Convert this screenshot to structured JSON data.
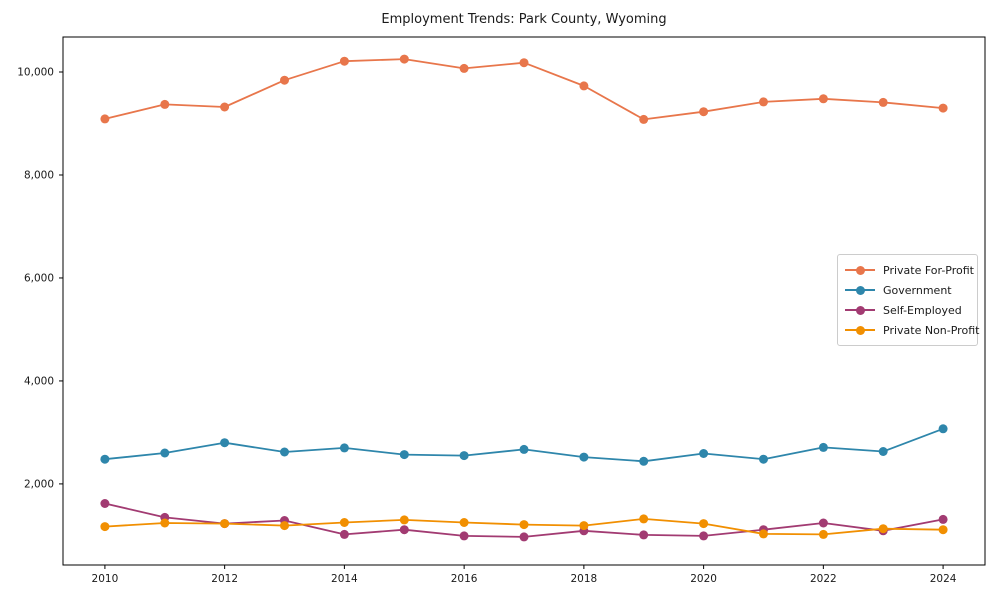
{
  "chart_data": {
    "type": "line",
    "title": "Employment Trends: Park County, Wyoming",
    "xlabel": "",
    "ylabel": "",
    "x": [
      2010,
      2011,
      2012,
      2013,
      2014,
      2015,
      2016,
      2017,
      2018,
      2019,
      2020,
      2021,
      2022,
      2023,
      2024
    ],
    "series": [
      {
        "name": "Private For-Profit",
        "color": "#E8764B",
        "values": [
          9090,
          9370,
          9320,
          9840,
          10210,
          10250,
          10070,
          10180,
          9730,
          9080,
          9230,
          9420,
          9480,
          9410,
          9300
        ]
      },
      {
        "name": "Government",
        "color": "#2E86AB",
        "values": [
          2480,
          2600,
          2800,
          2620,
          2700,
          2570,
          2550,
          2670,
          2520,
          2440,
          2590,
          2480,
          2710,
          2630,
          3070
        ]
      },
      {
        "name": "Self-Employed",
        "color": "#A23B72",
        "values": [
          1620,
          1350,
          1230,
          1290,
          1020,
          1110,
          990,
          970,
          1090,
          1010,
          990,
          1110,
          1240,
          1090,
          1310
        ]
      },
      {
        "name": "Private Non-Profit",
        "color": "#F18F01",
        "values": [
          1170,
          1240,
          1230,
          1190,
          1250,
          1300,
          1250,
          1210,
          1190,
          1320,
          1230,
          1030,
          1020,
          1130,
          1110
        ]
      }
    ],
    "x_ticks": [
      {
        "value": 2010,
        "label": "2010"
      },
      {
        "value": 2012,
        "label": "2012"
      },
      {
        "value": 2014,
        "label": "2014"
      },
      {
        "value": 2016,
        "label": "2016"
      },
      {
        "value": 2018,
        "label": "2018"
      },
      {
        "value": 2020,
        "label": "2020"
      },
      {
        "value": 2022,
        "label": "2022"
      },
      {
        "value": 2024,
        "label": "2024"
      }
    ],
    "y_ticks": [
      {
        "value": 2000,
        "label": "2,000"
      },
      {
        "value": 4000,
        "label": "4,000"
      },
      {
        "value": 6000,
        "label": "6,000"
      },
      {
        "value": 8000,
        "label": "8,000"
      },
      {
        "value": 10000,
        "label": "10,000"
      }
    ],
    "xlim": [
      2009.3,
      2024.7
    ],
    "ylim": [
      425,
      10680
    ],
    "grid": false,
    "legend_position": "center-right",
    "axis_color": "#000000",
    "background_color": "#ffffff"
  }
}
